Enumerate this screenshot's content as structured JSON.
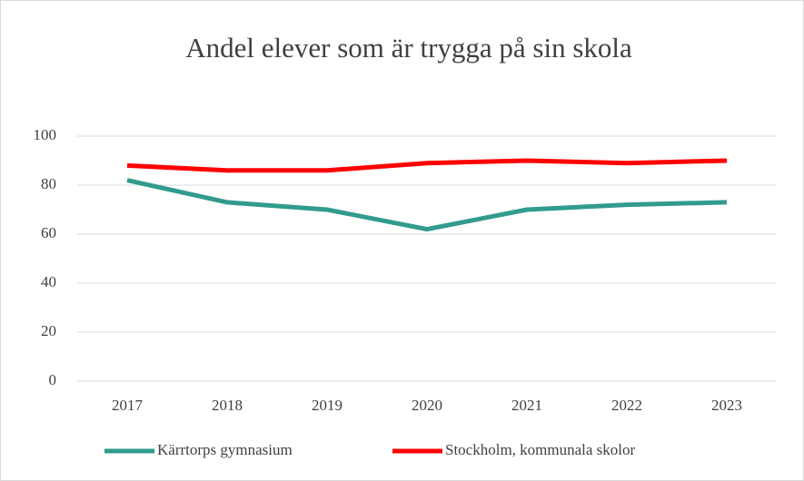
{
  "chart_data": {
    "type": "line",
    "title": "Andel elever som är trygga på sin skola",
    "categories": [
      "2017",
      "2018",
      "2019",
      "2020",
      "2021",
      "2022",
      "2023"
    ],
    "series": [
      {
        "name": "Kärrtorps gymnasium",
        "color": "#319b8d",
        "values": [
          82,
          73,
          70,
          62,
          70,
          72,
          73
        ]
      },
      {
        "name": "Stockholm, kommunala skolor",
        "color": "#ff0000",
        "values": [
          88,
          86,
          86,
          89,
          90,
          89,
          90
        ]
      }
    ],
    "ylim": [
      0,
      100
    ],
    "yticks": [
      0,
      20,
      40,
      60,
      80,
      100
    ],
    "grid": true,
    "legend": "bottom"
  }
}
